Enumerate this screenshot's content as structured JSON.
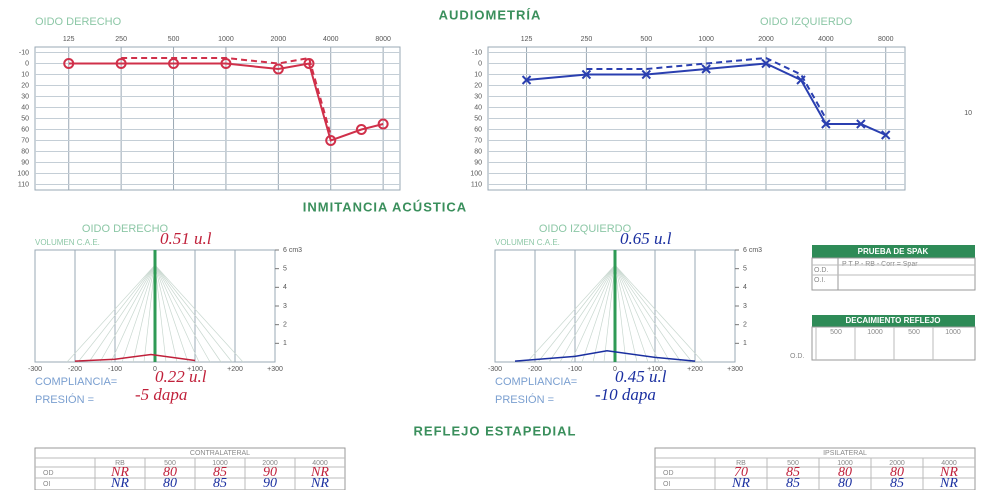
{
  "audiometry": {
    "title": "AUDIOMETRÍA",
    "xlim": [
      80,
      10000
    ],
    "ylim": [
      -15,
      115
    ],
    "xticks": [
      125,
      250,
      500,
      1000,
      2000,
      4000,
      8000
    ],
    "yticks": [
      -10,
      0,
      10,
      20,
      30,
      40,
      50,
      60,
      70,
      80,
      90,
      100,
      110
    ],
    "ears": [
      {
        "label": "OIDO DERECHO",
        "color": "#d0304a",
        "marker": "circle",
        "air": {
          "x": [
            125,
            250,
            500,
            1000,
            2000,
            3000,
            4000,
            6000,
            8000
          ],
          "values": [
            0,
            0,
            0,
            0,
            5,
            0,
            70,
            60,
            55
          ]
        },
        "bone": {
          "x": [
            250,
            500,
            1000,
            2000,
            3000,
            4000
          ],
          "values": [
            -5,
            -5,
            -5,
            0,
            -5,
            65
          ]
        }
      },
      {
        "label": "OIDO IZQUIERDO",
        "color": "#2a3fb0",
        "marker": "cross",
        "air": {
          "x": [
            125,
            250,
            500,
            1000,
            2000,
            3000,
            4000,
            6000,
            8000
          ],
          "values": [
            15,
            10,
            10,
            5,
            0,
            15,
            55,
            55,
            65
          ]
        },
        "bone": {
          "x": [
            250,
            500,
            1000,
            2000,
            3000,
            4000
          ],
          "values": [
            5,
            5,
            0,
            -5,
            10,
            50
          ]
        }
      }
    ],
    "margin_note": "10"
  },
  "tympanometry": {
    "title": "INMITANCIA ACÚSTICA",
    "xlim": [
      -300,
      300
    ],
    "ylim": [
      0,
      6
    ],
    "xticks": [
      -300,
      -200,
      -100,
      0,
      {
        "value": 100,
        "label": "+100"
      },
      {
        "value": 200,
        "label": "+200"
      },
      {
        "value": 300,
        "label": "+300"
      }
    ],
    "yticks": [
      1,
      2,
      3,
      4,
      5,
      {
        "value": 6,
        "label": "6 cm3"
      }
    ],
    "ears": [
      {
        "label": "OIDO DERECHO",
        "volume_label": "VOLUMEN C.A.E.",
        "volume": "0.51 u.l",
        "compliance_label": "COMPLIANCIA=",
        "compliance": "0.22 u.l",
        "pressure_label": "PRESIÓN =",
        "pressure": "-5 dapa",
        "color": "#c0203a",
        "curve": {
          "x": [
            -200,
            -100,
            -10,
            100
          ],
          "values": [
            0.05,
            0.15,
            0.4,
            0.08
          ]
        }
      },
      {
        "label": "OIDO IZQUIERDO",
        "volume_label": "VOLUMEN C.A.E.",
        "volume": "0.65 u.l",
        "compliance_label": "COMPLIANCIA=",
        "compliance": "0.45 u.l",
        "pressure_label": "PRESIÓN =",
        "pressure": "-10 dapa",
        "color": "#1a2fa0",
        "curve": {
          "x": [
            -250,
            -100,
            -20,
            100,
            200
          ],
          "values": [
            0.05,
            0.3,
            0.6,
            0.25,
            0.05
          ]
        }
      }
    ]
  },
  "spak": {
    "title": "PRUEBA DE SPAK",
    "formula": "P T P - RB - Corr = Spar",
    "rows": [
      "O.D.",
      "O.I."
    ]
  },
  "decay": {
    "title": "DECAIMIENTO REFLEJO",
    "columns": [
      500,
      1000,
      500,
      1000
    ],
    "row": "O.D."
  },
  "reflex": {
    "title": "REFLEJO ESTAPEDIAL",
    "tables": [
      {
        "label": "CONTRALATERAL",
        "columns": [
          "RB",
          500,
          1000,
          2000,
          4000
        ],
        "rows": [
          {
            "label": "OD",
            "cells": [
              "NR",
              80,
              85,
              90,
              "NR"
            ]
          },
          {
            "label": "OI",
            "cells": [
              "NR",
              80,
              85,
              90,
              "NR"
            ]
          }
        ]
      },
      {
        "label": "IPSILATERAL",
        "columns": [
          "RB",
          500,
          1000,
          2000,
          4000
        ],
        "rows": [
          {
            "label": "OD",
            "cells": [
              70,
              85,
              80,
              80,
              "NR"
            ]
          },
          {
            "label": "OI",
            "cells": [
              "NR",
              85,
              80,
              85,
              "NR"
            ]
          }
        ]
      }
    ]
  }
}
